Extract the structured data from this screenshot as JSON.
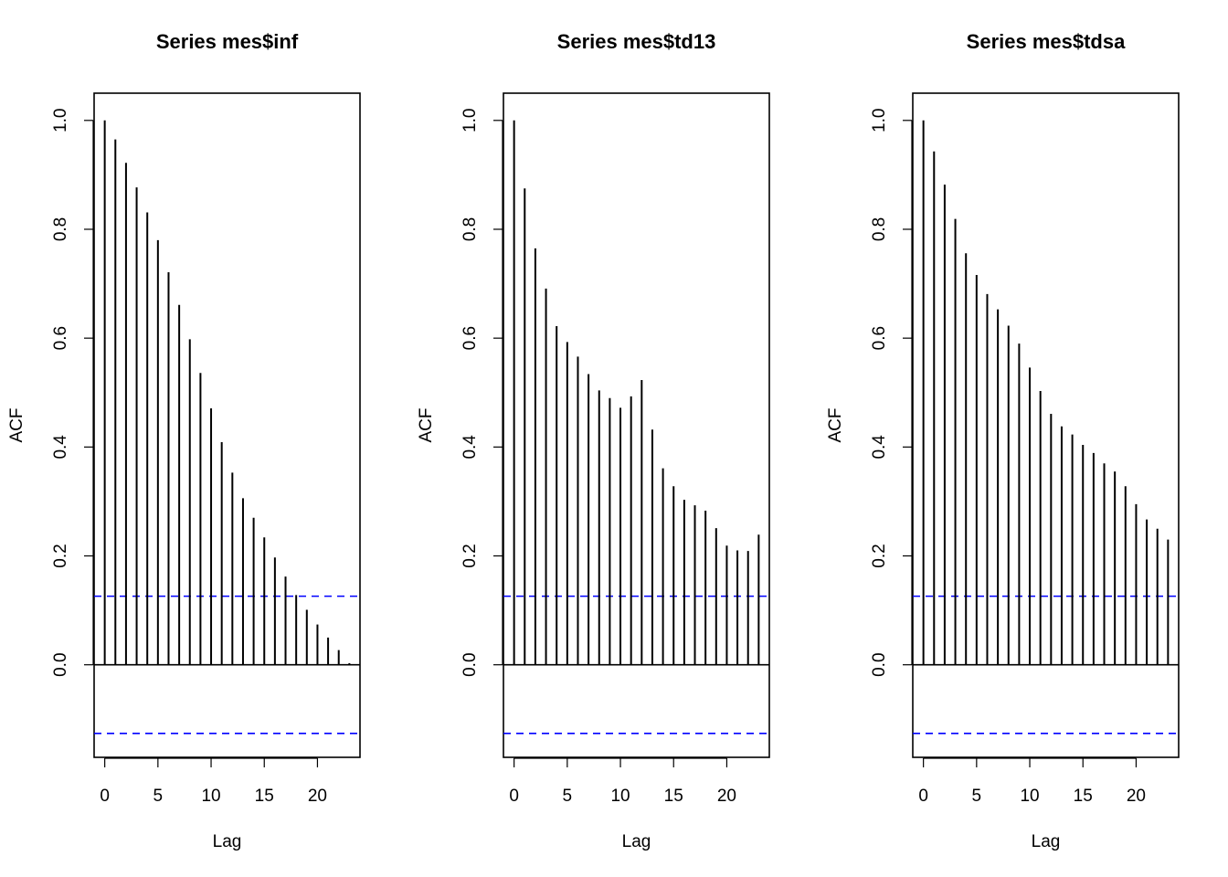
{
  "chart_data": [
    {
      "type": "bar",
      "title": "Series  mes$inf",
      "xlabel": "Lag",
      "ylabel": "ACF",
      "xlim": [
        -1,
        24
      ],
      "ylim": [
        -0.17,
        1.05
      ],
      "x_ticks": [
        0,
        5,
        10,
        15,
        20
      ],
      "y_ticks": [
        0.0,
        0.2,
        0.4,
        0.6,
        0.8,
        1.0
      ],
      "y_tick_labels": [
        "0.0",
        "0.2",
        "0.4",
        "0.6",
        "0.8",
        "1.0"
      ],
      "lags": [
        0,
        1,
        2,
        3,
        4,
        5,
        6,
        7,
        8,
        9,
        10,
        11,
        12,
        13,
        14,
        15,
        16,
        17,
        18,
        19,
        20,
        21,
        22,
        23
      ],
      "values": [
        1.0,
        0.965,
        0.922,
        0.877,
        0.831,
        0.78,
        0.721,
        0.661,
        0.598,
        0.536,
        0.471,
        0.409,
        0.353,
        0.306,
        0.27,
        0.234,
        0.197,
        0.162,
        0.128,
        0.101,
        0.074,
        0.05,
        0.027,
        0.003
      ],
      "confidence_bound": 0.126,
      "confidence_color": "#0000ff"
    },
    {
      "type": "bar",
      "title": "Series  mes$td13",
      "xlabel": "Lag",
      "ylabel": "ACF",
      "xlim": [
        -1,
        24
      ],
      "ylim": [
        -0.17,
        1.05
      ],
      "x_ticks": [
        0,
        5,
        10,
        15,
        20
      ],
      "y_ticks": [
        0.0,
        0.2,
        0.4,
        0.6,
        0.8,
        1.0
      ],
      "y_tick_labels": [
        "0.0",
        "0.2",
        "0.4",
        "0.6",
        "0.8",
        "1.0"
      ],
      "lags": [
        0,
        1,
        2,
        3,
        4,
        5,
        6,
        7,
        8,
        9,
        10,
        11,
        12,
        13,
        14,
        15,
        16,
        17,
        18,
        19,
        20,
        21,
        22,
        23
      ],
      "values": [
        1.0,
        0.875,
        0.765,
        0.691,
        0.622,
        0.593,
        0.566,
        0.534,
        0.504,
        0.49,
        0.472,
        0.493,
        0.523,
        0.432,
        0.361,
        0.328,
        0.303,
        0.293,
        0.283,
        0.251,
        0.219,
        0.21,
        0.209,
        0.239
      ],
      "confidence_bound": 0.126,
      "confidence_color": "#0000ff"
    },
    {
      "type": "bar",
      "title": "Series  mes$tdsa",
      "xlabel": "Lag",
      "ylabel": "ACF",
      "xlim": [
        -1,
        24
      ],
      "ylim": [
        -0.17,
        1.05
      ],
      "x_ticks": [
        0,
        5,
        10,
        15,
        20
      ],
      "y_ticks": [
        0.0,
        0.2,
        0.4,
        0.6,
        0.8,
        1.0
      ],
      "y_tick_labels": [
        "0.0",
        "0.2",
        "0.4",
        "0.6",
        "0.8",
        "1.0"
      ],
      "lags": [
        0,
        1,
        2,
        3,
        4,
        5,
        6,
        7,
        8,
        9,
        10,
        11,
        12,
        13,
        14,
        15,
        16,
        17,
        18,
        19,
        20,
        21,
        22,
        23
      ],
      "values": [
        1.0,
        0.943,
        0.882,
        0.819,
        0.756,
        0.716,
        0.681,
        0.653,
        0.623,
        0.59,
        0.546,
        0.503,
        0.461,
        0.438,
        0.423,
        0.404,
        0.389,
        0.37,
        0.355,
        0.328,
        0.295,
        0.267,
        0.25,
        0.23
      ],
      "confidence_bound": 0.126,
      "confidence_color": "#0000ff"
    }
  ]
}
